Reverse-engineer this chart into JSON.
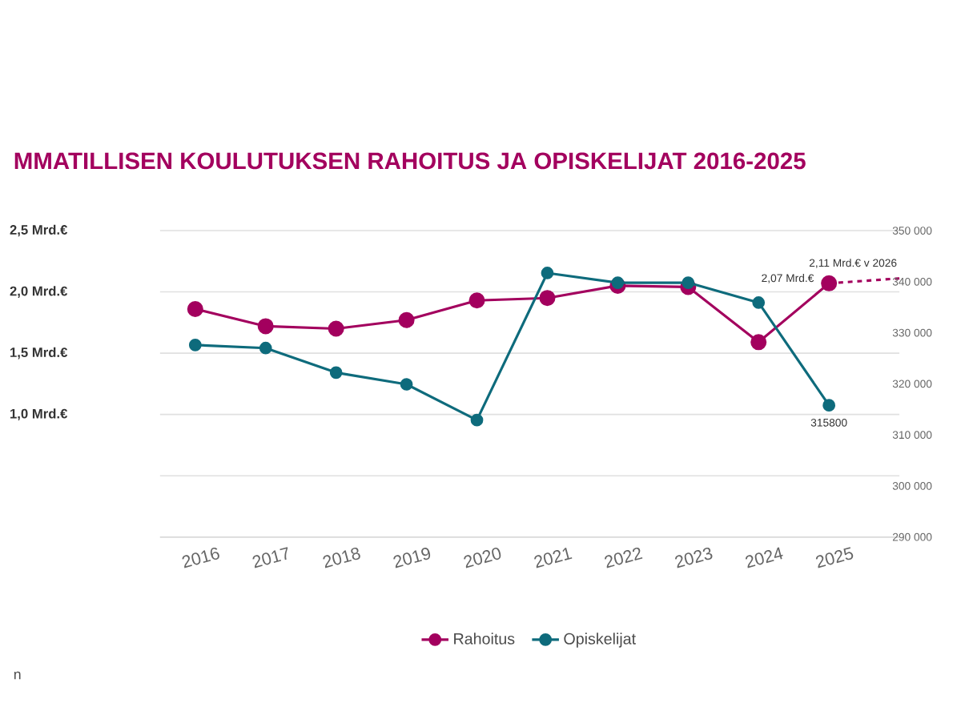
{
  "chart_data": {
    "type": "line",
    "title": "MMATILLISEN KOULUTUKSEN RAHOITUS JA OPISKELIJAT 2016-2025",
    "annotations": [
      "n"
    ],
    "x": [
      2016,
      2017,
      2018,
      2019,
      2020,
      2021,
      2022,
      2023,
      2024,
      2025
    ],
    "xlim": [
      2015.5,
      2026
    ],
    "xticks": [
      2016,
      2017,
      2018,
      2019,
      2020,
      2021,
      2022,
      2023,
      2024,
      2025
    ],
    "ylim": [
      0,
      2.5
    ],
    "yticks": [
      {
        "value": 0,
        "label": null
      },
      {
        "value": 0.5,
        "label": null
      },
      {
        "value": 1.0,
        "label": "1,0 Mrd.€"
      },
      {
        "value": 1.5,
        "label": "1,5 Mrd.€"
      },
      {
        "value": 2.0,
        "label": "2,0 Mrd.€"
      },
      {
        "value": 2.5,
        "label": "2,5 Mrd.€"
      }
    ],
    "y2lim": [
      290000,
      350000
    ],
    "y2ticks": [
      {
        "value": 290000,
        "label": "290 000"
      },
      {
        "value": 300000,
        "label": "300 000"
      },
      {
        "value": 310000,
        "label": "310 000"
      },
      {
        "value": 320000,
        "label": "320 000"
      },
      {
        "value": 330000,
        "label": "330 000"
      },
      {
        "value": 340000,
        "label": "340 000"
      },
      {
        "value": 350000,
        "label": "350 000"
      }
    ],
    "grid": "y",
    "legend": "bottom",
    "marker": "circle",
    "series": [
      {
        "name": "Rahoitus",
        "color": "#a3005e",
        "values": [
          1.86,
          1.72,
          1.7,
          1.77,
          1.93,
          1.95,
          2.05,
          2.04,
          1.59,
          2.07
        ],
        "value_labels": [
          null,
          null,
          null,
          null,
          null,
          null,
          null,
          null,
          null,
          "2,07 Mrd.€"
        ]
      },
      {
        "name": "Opiskelijat",
        "color": "#0e6b7c",
        "axis": "y2",
        "values": [
          327600,
          327000,
          322200,
          319900,
          312900,
          341700,
          339800,
          339800,
          335900,
          315800
        ],
        "value_labels": [
          null,
          null,
          null,
          null,
          null,
          null,
          null,
          null,
          null,
          "315800"
        ]
      },
      {
        "type": "line",
        "color": "#a3005e",
        "line_style": "dashed",
        "marker": "none",
        "x": [
          2025,
          2026
        ],
        "values": [
          2.07,
          2.11
        ],
        "value_labels": [
          null,
          "2,11 Mrd.€  v 2026"
        ]
      }
    ]
  }
}
